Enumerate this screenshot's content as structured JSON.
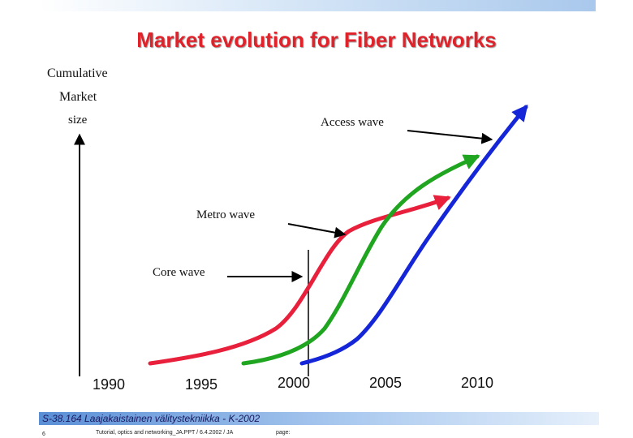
{
  "title": "Market evolution for Fiber Networks",
  "y_axis_label": [
    "Cumulative",
    "Market",
    "size"
  ],
  "wave_labels": {
    "access": "Access wave",
    "metro": "Metro wave",
    "core": "Core wave"
  },
  "years": [
    "1990",
    "1995",
    "2000",
    "2005",
    "2010"
  ],
  "colors": {
    "core": "#e8203c",
    "metro": "#1fa51f",
    "access": "#1426d8",
    "title": "#e0222b"
  },
  "footer": {
    "course": "S-38.164 Laajakaistainen välitystekniikka - K-2002",
    "subtitle": "Tutorial, optics and networking_JA.PPT / 6.4.2002 / JA",
    "page_label": "page:",
    "page_number": "6"
  }
}
